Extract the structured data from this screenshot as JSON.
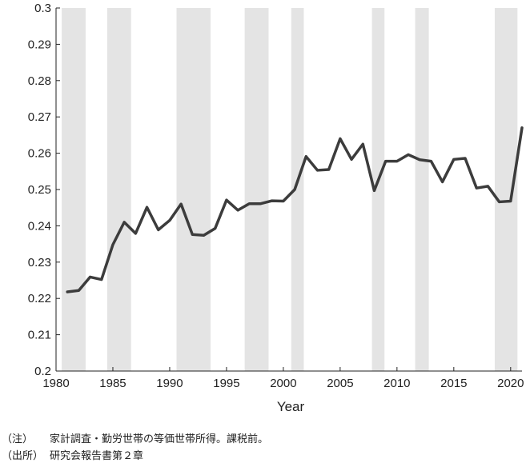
{
  "chart_data": {
    "type": "line",
    "xlabel": "Year",
    "ylabel": "",
    "xlim": [
      1980,
      2021
    ],
    "ylim": [
      0.2,
      0.3
    ],
    "x_ticks": [
      1980,
      1985,
      1990,
      1995,
      2000,
      2005,
      2010,
      2015,
      2020
    ],
    "x_tick_labels": [
      "1980",
      "1985",
      "1990",
      "1995",
      "2000",
      "2005",
      "2010",
      "2015",
      "2020"
    ],
    "y_ticks": [
      0.2,
      0.21,
      0.22,
      0.23,
      0.24,
      0.25,
      0.26,
      0.27,
      0.28,
      0.29,
      0.3
    ],
    "y_tick_labels": [
      "0.2",
      "0.21",
      "0.22",
      "0.23",
      "0.24",
      "0.25",
      "0.26",
      "0.27",
      "0.28",
      "0.29",
      "0.3"
    ],
    "grid": false,
    "shaded_periods": [
      [
        1980.5,
        1982.6
      ],
      [
        1984.5,
        1986.6
      ],
      [
        1990.6,
        1993.6
      ],
      [
        1996.6,
        1998.7
      ],
      [
        2000.7,
        2001.8
      ],
      [
        2007.8,
        2008.9
      ],
      [
        2011.6,
        2012.8
      ],
      [
        2018.6,
        2020.6
      ]
    ],
    "series": [
      {
        "color": "#3c3c3c",
        "x": [
          1981,
          1982,
          1983,
          1984,
          1985,
          1986,
          1987,
          1988,
          1989,
          1990,
          1991,
          1992,
          1993,
          1994,
          1995,
          1996,
          1997,
          1998,
          1999,
          2000,
          2001,
          2002,
          2003,
          2004,
          2005,
          2006,
          2007,
          2008,
          2009,
          2010,
          2011,
          2012,
          2013,
          2014,
          2015,
          2016,
          2017,
          2018,
          2019,
          2020,
          2021
        ],
        "y": [
          0.2218,
          0.2222,
          0.2259,
          0.2252,
          0.2348,
          0.241,
          0.2379,
          0.2451,
          0.2389,
          0.2415,
          0.246,
          0.2376,
          0.2374,
          0.2393,
          0.2471,
          0.2443,
          0.2461,
          0.2461,
          0.2469,
          0.2468,
          0.25,
          0.2591,
          0.2553,
          0.2555,
          0.264,
          0.2583,
          0.2625,
          0.2497,
          0.2578,
          0.2578,
          0.2596,
          0.2582,
          0.2578,
          0.2521,
          0.2583,
          0.2586,
          0.2504,
          0.2509,
          0.2466,
          0.2468,
          0.267
        ]
      }
    ]
  },
  "notes": {
    "note_label": "（注）",
    "note_text": "家計調査・勤労世帯の等価世帯所得。課税前。",
    "source_label": "（出所）",
    "source_text": "研究会報告書第２章"
  },
  "colors": {
    "shade": "#e4e4e4",
    "axis": "#222222",
    "line": "#3c3c3c"
  }
}
